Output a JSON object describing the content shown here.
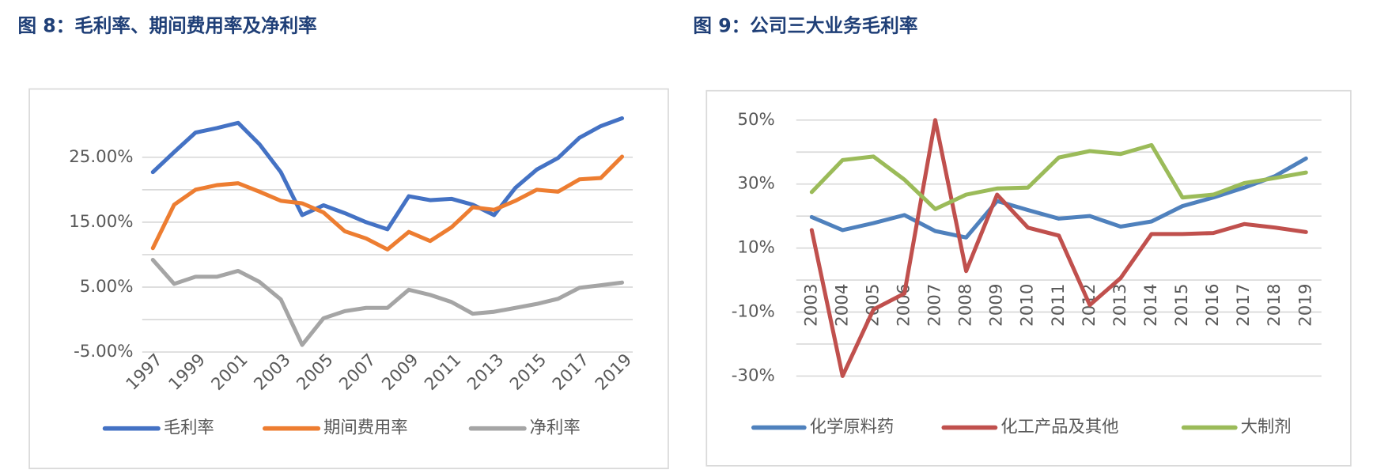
{
  "chart_data": [
    {
      "type": "line",
      "title": "图 8：毛利率、期间费用率及净利率",
      "categories": [
        "1997",
        null,
        "1999",
        null,
        "2001",
        null,
        "2003",
        null,
        "2005",
        null,
        "2007",
        null,
        "2009",
        null,
        "2011",
        null,
        "2013",
        null,
        "2015",
        null,
        "2017",
        null,
        "2019"
      ],
      "series": [
        {
          "name": "毛利率",
          "color": "#4472c4",
          "values": [
            22.7,
            25.8,
            28.8,
            29.5,
            30.3,
            27,
            22.7,
            16.1,
            17.6,
            16.4,
            15,
            13.9,
            19,
            18.4,
            18.6,
            17.7,
            16.1,
            20.3,
            23.1,
            24.9,
            28,
            29.8,
            31
          ]
        },
        {
          "name": "期间费用率",
          "color": "#ed7d31",
          "values": [
            11,
            17.7,
            20,
            20.7,
            21,
            19.7,
            18.3,
            17.9,
            16.5,
            13.6,
            12.5,
            10.8,
            13.5,
            12.1,
            14.2,
            17.3,
            16.9,
            18.3,
            20,
            19.7,
            21.6,
            21.8,
            25.1
          ]
        },
        {
          "name": "净利率",
          "color": "#a5a5a5",
          "values": [
            9.2,
            5.5,
            6.6,
            6.6,
            7.5,
            5.8,
            3.1,
            -3.9,
            0.2,
            1.3,
            1.8,
            1.8,
            4.6,
            3.8,
            2.7,
            0.9,
            1.2,
            1.8,
            2.4,
            3.2,
            4.9,
            5.3,
            5.7
          ]
        }
      ],
      "ylim": [
        -5,
        31
      ],
      "yticks": [
        {
          "value": -5,
          "label": "-5.00%"
        },
        {
          "value": 5,
          "label": "5.00%"
        },
        {
          "value": 15,
          "label": "15.00%"
        },
        {
          "value": 25,
          "label": "25.00%"
        }
      ],
      "minor_yticks": [
        0,
        10,
        20
      ],
      "grid": true,
      "legend": "bottom",
      "x_label_rotation": -45
    },
    {
      "type": "line",
      "title": "图 9：公司三大业务毛利率",
      "categories": [
        "2003",
        "2004",
        "2005",
        "2006",
        "2007",
        "2008",
        "2009",
        "2010",
        "2011",
        "2012",
        "2013",
        "2014",
        "2015",
        "2016",
        "2017",
        "2018",
        "2019"
      ],
      "series": [
        {
          "name": "化学原料药",
          "color": "#4f81bd",
          "values": [
            19.7,
            15.6,
            17.8,
            20.3,
            15.3,
            13.3,
            24.7,
            21.9,
            19.2,
            20,
            16.7,
            18.3,
            23.1,
            25.8,
            28.9,
            32.5,
            38
          ]
        },
        {
          "name": "化工产品及其他",
          "color": "#c0504d",
          "values": [
            15.6,
            -30,
            -9.2,
            -4.2,
            50,
            2.8,
            26.7,
            16.4,
            13.9,
            -7.8,
            0.6,
            14.4,
            14.4,
            14.7,
            17.5,
            16.4,
            15
          ]
        },
        {
          "name": "大制剂",
          "color": "#9bbb59",
          "values": [
            27.5,
            37.5,
            38.6,
            31.4,
            22.2,
            26.7,
            28.6,
            28.9,
            38.3,
            40.3,
            39.4,
            42.2,
            25.8,
            26.7,
            30.3,
            31.9,
            33.6
          ]
        }
      ],
      "ylim": [
        -30,
        50
      ],
      "yticks": [
        {
          "value": -30,
          "label": "-30%"
        },
        {
          "value": -10,
          "label": "-10%"
        },
        {
          "value": 10,
          "label": "10%"
        },
        {
          "value": 30,
          "label": "30%"
        },
        {
          "value": 50,
          "label": "50%"
        }
      ],
      "minor_yticks": [
        -20,
        0,
        20,
        40
      ],
      "grid": true,
      "legend": "bottom",
      "x_label_rotation": -90
    }
  ]
}
